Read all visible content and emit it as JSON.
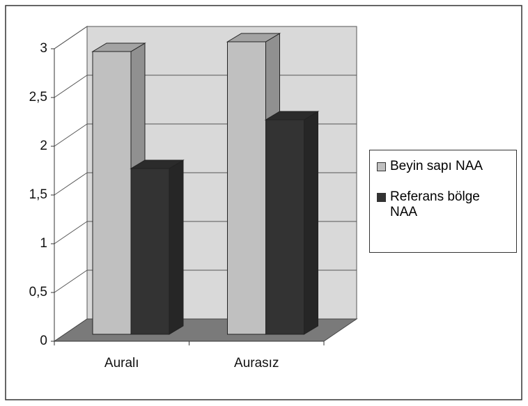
{
  "chart_data": {
    "type": "bar3d",
    "categories": [
      "Auralı",
      "Aurasız"
    ],
    "series": [
      {
        "name": "Beyin sapı NAA",
        "color": "#c0c0c0",
        "values": [
          2.9,
          3.0
        ]
      },
      {
        "name": "Referans bölge NAA",
        "color": "#333333",
        "values": [
          1.7,
          2.2
        ]
      }
    ],
    "ylim": [
      0,
      3
    ],
    "yticks": [
      0,
      {
        "value": 0.5,
        "label": "0,5"
      },
      1,
      {
        "value": 1.5,
        "label": "1,5"
      },
      2,
      {
        "value": 2.5,
        "label": "2,5"
      },
      3
    ],
    "grid": true,
    "legend": "right"
  }
}
